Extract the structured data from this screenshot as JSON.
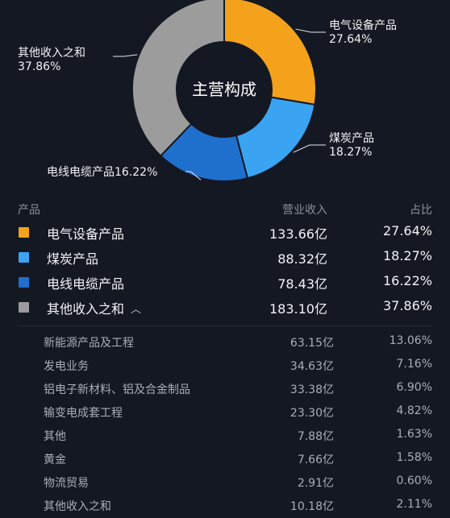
{
  "chart_data": {
    "type": "pie",
    "title": "主营构成",
    "categories": [
      "电气设备产品",
      "煤炭产品",
      "电线电缆产品",
      "其他收入之和"
    ],
    "values": [
      27.64,
      18.27,
      16.22,
      37.86
    ],
    "labels": [
      "27.64%",
      "18.27%",
      "16.22%",
      "37.86%"
    ],
    "colors": [
      "#f4a21c",
      "#3aa3f2",
      "#1f6fcd",
      "#9c9c9c"
    ]
  },
  "table": {
    "headers": {
      "product": "产品",
      "revenue": "营业收入",
      "share": "占比"
    },
    "rows": [
      {
        "name": "电气设备产品",
        "revenue": "133.66亿",
        "share": "27.64%",
        "color": "#f4a21c"
      },
      {
        "name": "煤炭产品",
        "revenue": "88.32亿",
        "share": "18.27%",
        "color": "#3aa3f2"
      },
      {
        "name": "电线电缆产品",
        "revenue": "78.43亿",
        "share": "16.22%",
        "color": "#1f6fcd"
      },
      {
        "name": "其他收入之和",
        "revenue": "183.10亿",
        "share": "37.86%",
        "color": "#9c9c9c",
        "expanded": true,
        "toggle_icon": "chevron-up-icon"
      }
    ],
    "sub_rows": [
      {
        "name": "新能源产品及工程",
        "revenue": "63.15亿",
        "share": "13.06%"
      },
      {
        "name": "发电业务",
        "revenue": "34.63亿",
        "share": "7.16%"
      },
      {
        "name": "铝电子新材料、铝及合金制品",
        "revenue": "33.38亿",
        "share": "6.90%"
      },
      {
        "name": "输变电成套工程",
        "revenue": "23.30亿",
        "share": "4.82%"
      },
      {
        "name": "其他",
        "revenue": "7.88亿",
        "share": "1.63%"
      },
      {
        "name": "黄金",
        "revenue": "7.66亿",
        "share": "1.58%"
      },
      {
        "name": "物流贸易",
        "revenue": "2.91亿",
        "share": "0.60%"
      },
      {
        "name": "其他收入之和",
        "revenue": "10.18亿",
        "share": "2.11%"
      }
    ]
  }
}
